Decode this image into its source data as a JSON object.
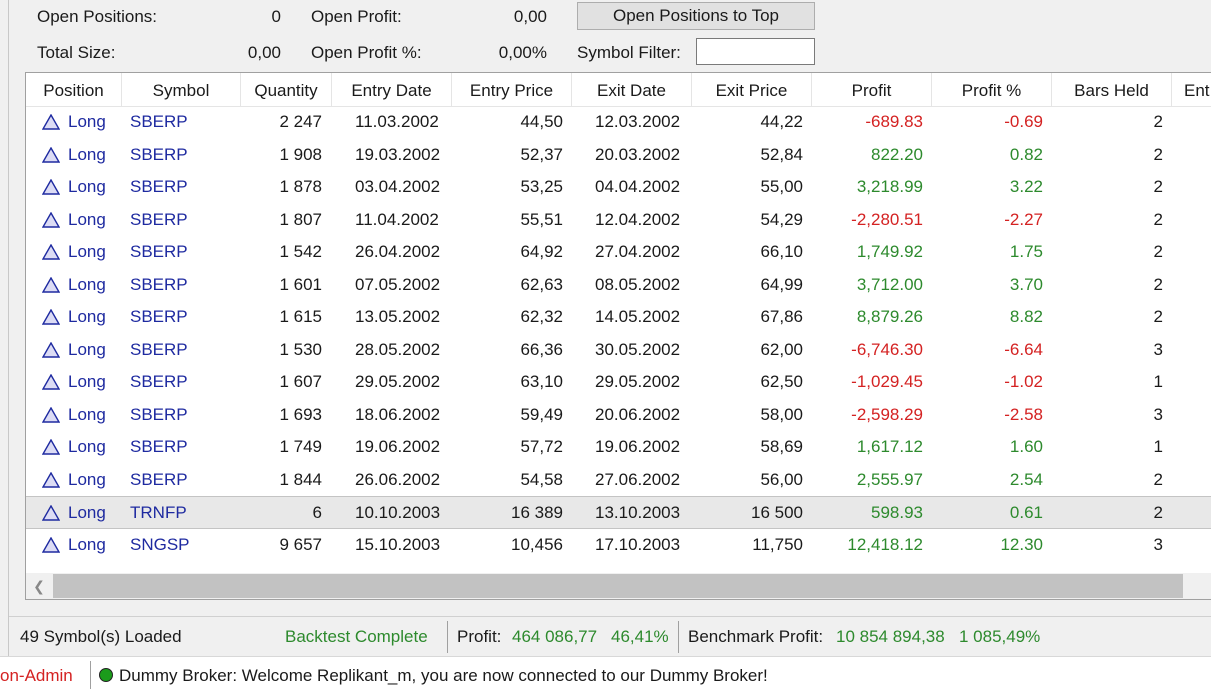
{
  "summary": {
    "open_positions_label": "Open Positions:",
    "open_positions_value": "0",
    "open_profit_label": "Open Profit:",
    "open_profit_value": "0,00",
    "total_size_label": "Total Size:",
    "total_size_value": "0,00",
    "open_profit_pct_label": "Open Profit %:",
    "open_profit_pct_value": "0,00%",
    "open_to_top_button": "Open Positions to Top",
    "symbol_filter_label": "Symbol Filter:",
    "symbol_filter_value": ""
  },
  "table": {
    "columns": [
      "Position",
      "Symbol",
      "Quantity",
      "Entry Date",
      "Entry Price",
      "Exit Date",
      "Exit Price",
      "Profit",
      "Profit %",
      "Bars Held",
      "Ent"
    ],
    "rows": [
      {
        "position": "Long",
        "symbol": "SBERP",
        "quantity": "2 247",
        "entry_date": "11.03.2002",
        "entry_price": "44,50",
        "exit_date": "12.03.2002",
        "exit_price": "44,22",
        "profit": "-689.83",
        "profit_pct": "-0.69",
        "bars_held": "2",
        "sign": "neg"
      },
      {
        "position": "Long",
        "symbol": "SBERP",
        "quantity": "1 908",
        "entry_date": "19.03.2002",
        "entry_price": "52,37",
        "exit_date": "20.03.2002",
        "exit_price": "52,84",
        "profit": "822.20",
        "profit_pct": "0.82",
        "bars_held": "2",
        "sign": "pos"
      },
      {
        "position": "Long",
        "symbol": "SBERP",
        "quantity": "1 878",
        "entry_date": "03.04.2002",
        "entry_price": "53,25",
        "exit_date": "04.04.2002",
        "exit_price": "55,00",
        "profit": "3,218.99",
        "profit_pct": "3.22",
        "bars_held": "2",
        "sign": "pos"
      },
      {
        "position": "Long",
        "symbol": "SBERP",
        "quantity": "1 807",
        "entry_date": "11.04.2002",
        "entry_price": "55,51",
        "exit_date": "12.04.2002",
        "exit_price": "54,29",
        "profit": "-2,280.51",
        "profit_pct": "-2.27",
        "bars_held": "2",
        "sign": "neg"
      },
      {
        "position": "Long",
        "symbol": "SBERP",
        "quantity": "1 542",
        "entry_date": "26.04.2002",
        "entry_price": "64,92",
        "exit_date": "27.04.2002",
        "exit_price": "66,10",
        "profit": "1,749.92",
        "profit_pct": "1.75",
        "bars_held": "2",
        "sign": "pos"
      },
      {
        "position": "Long",
        "symbol": "SBERP",
        "quantity": "1 601",
        "entry_date": "07.05.2002",
        "entry_price": "62,63",
        "exit_date": "08.05.2002",
        "exit_price": "64,99",
        "profit": "3,712.00",
        "profit_pct": "3.70",
        "bars_held": "2",
        "sign": "pos"
      },
      {
        "position": "Long",
        "symbol": "SBERP",
        "quantity": "1 615",
        "entry_date": "13.05.2002",
        "entry_price": "62,32",
        "exit_date": "14.05.2002",
        "exit_price": "67,86",
        "profit": "8,879.26",
        "profit_pct": "8.82",
        "bars_held": "2",
        "sign": "pos"
      },
      {
        "position": "Long",
        "symbol": "SBERP",
        "quantity": "1 530",
        "entry_date": "28.05.2002",
        "entry_price": "66,36",
        "exit_date": "30.05.2002",
        "exit_price": "62,00",
        "profit": "-6,746.30",
        "profit_pct": "-6.64",
        "bars_held": "3",
        "sign": "neg"
      },
      {
        "position": "Long",
        "symbol": "SBERP",
        "quantity": "1 607",
        "entry_date": "29.05.2002",
        "entry_price": "63,10",
        "exit_date": "29.05.2002",
        "exit_price": "62,50",
        "profit": "-1,029.45",
        "profit_pct": "-1.02",
        "bars_held": "1",
        "sign": "neg"
      },
      {
        "position": "Long",
        "symbol": "SBERP",
        "quantity": "1 693",
        "entry_date": "18.06.2002",
        "entry_price": "59,49",
        "exit_date": "20.06.2002",
        "exit_price": "58,00",
        "profit": "-2,598.29",
        "profit_pct": "-2.58",
        "bars_held": "3",
        "sign": "neg"
      },
      {
        "position": "Long",
        "symbol": "SBERP",
        "quantity": "1 749",
        "entry_date": "19.06.2002",
        "entry_price": "57,72",
        "exit_date": "19.06.2002",
        "exit_price": "58,69",
        "profit": "1,617.12",
        "profit_pct": "1.60",
        "bars_held": "1",
        "sign": "pos"
      },
      {
        "position": "Long",
        "symbol": "SBERP",
        "quantity": "1 844",
        "entry_date": "26.06.2002",
        "entry_price": "54,58",
        "exit_date": "27.06.2002",
        "exit_price": "56,00",
        "profit": "2,555.97",
        "profit_pct": "2.54",
        "bars_held": "2",
        "sign": "pos"
      },
      {
        "position": "Long",
        "symbol": "TRNFP",
        "quantity": "6",
        "entry_date": "10.10.2003",
        "entry_price": "16 389",
        "exit_date": "13.10.2003",
        "exit_price": "16 500",
        "profit": "598.93",
        "profit_pct": "0.61",
        "bars_held": "2",
        "sign": "pos",
        "selected": true
      },
      {
        "position": "Long",
        "symbol": "SNGSP",
        "quantity": "9 657",
        "entry_date": "15.10.2003",
        "entry_price": "10,456",
        "exit_date": "17.10.2003",
        "exit_price": "11,750",
        "profit": "12,418.12",
        "profit_pct": "12.30",
        "bars_held": "3",
        "sign": "pos"
      }
    ]
  },
  "status": {
    "symbols_loaded": "49 Symbol(s) Loaded",
    "backtest_state": "Backtest Complete",
    "profit_label": "Profit:",
    "profit_value": "464 086,77",
    "profit_pct": "46,41%",
    "benchmark_label": "Benchmark Profit:",
    "benchmark_value": "10 854 894,38",
    "benchmark_pct": "1 085,49%"
  },
  "bottom": {
    "admin_text": "on-Admin",
    "broker_message": "Dummy Broker: Welcome Replikant_m, you are now connected to our Dummy Broker!"
  },
  "colors": {
    "positive": "#2d8a2d",
    "negative": "#d42222",
    "long_blue": "#1e2aa0",
    "connected_led": "#1b9b1b"
  },
  "icons": {
    "long_position": "triangle-up-icon",
    "scroll_left": "chevron-left-icon",
    "connection_status": "status-led-icon"
  }
}
